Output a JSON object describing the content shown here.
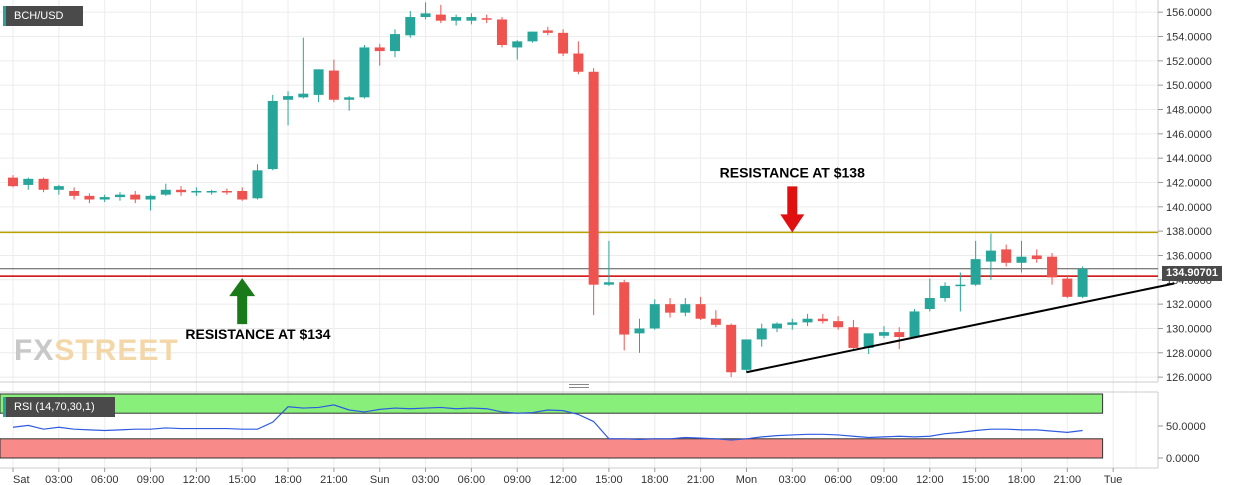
{
  "symbol": "BCH/USD",
  "current_price_label": "134.90701",
  "watermark": {
    "fx": "FX",
    "street": "STREET"
  },
  "colors": {
    "up": "#26a69a",
    "down": "#ef5350",
    "resistance134": "#cc0000",
    "resistance138": "#b8a200",
    "trend": "#000000"
  },
  "chart_data": {
    "type": "candlestick",
    "ylim": [
      125.6,
      157.0
    ],
    "yticks": [
      "156.0000",
      "154.0000",
      "152.0000",
      "150.0000",
      "148.0000",
      "146.0000",
      "144.0000",
      "142.0000",
      "140.0000",
      "138.0000",
      "136.0000",
      "134.0000",
      "132.0000",
      "130.0000",
      "128.0000",
      "126.0000"
    ],
    "x_labels": [
      {
        "t": 0,
        "label": "Sat"
      },
      {
        "t": 3,
        "label": "03:00"
      },
      {
        "t": 6,
        "label": "06:00"
      },
      {
        "t": 9,
        "label": "09:00"
      },
      {
        "t": 12,
        "label": "12:00"
      },
      {
        "t": 15,
        "label": "15:00"
      },
      {
        "t": 18,
        "label": "18:00"
      },
      {
        "t": 21,
        "label": "21:00"
      },
      {
        "t": 24,
        "label": "Sun"
      },
      {
        "t": 27,
        "label": "03:00"
      },
      {
        "t": 30,
        "label": "06:00"
      },
      {
        "t": 33,
        "label": "09:00"
      },
      {
        "t": 36,
        "label": "12:00"
      },
      {
        "t": 39,
        "label": "15:00"
      },
      {
        "t": 42,
        "label": "18:00"
      },
      {
        "t": 45,
        "label": "21:00"
      },
      {
        "t": 48,
        "label": "Mon"
      },
      {
        "t": 51,
        "label": "03:00"
      },
      {
        "t": 54,
        "label": "06:00"
      },
      {
        "t": 57,
        "label": "09:00"
      },
      {
        "t": 60,
        "label": "12:00"
      },
      {
        "t": 63,
        "label": "15:00"
      },
      {
        "t": 66,
        "label": "18:00"
      },
      {
        "t": 69,
        "label": "21:00"
      },
      {
        "t": 72,
        "label": "Tue"
      }
    ],
    "candles": [
      {
        "t": 0,
        "o": 142.4,
        "h": 142.6,
        "l": 141.6,
        "c": 141.7
      },
      {
        "t": 1,
        "o": 141.8,
        "h": 142.4,
        "l": 141.4,
        "c": 142.3
      },
      {
        "t": 2,
        "o": 142.3,
        "h": 142.4,
        "l": 141.2,
        "c": 141.4
      },
      {
        "t": 3,
        "o": 141.4,
        "h": 141.8,
        "l": 141.0,
        "c": 141.7
      },
      {
        "t": 4,
        "o": 141.3,
        "h": 141.6,
        "l": 140.6,
        "c": 140.9
      },
      {
        "t": 5,
        "o": 140.9,
        "h": 141.1,
        "l": 140.3,
        "c": 140.6
      },
      {
        "t": 6,
        "o": 140.6,
        "h": 141.0,
        "l": 140.4,
        "c": 140.8
      },
      {
        "t": 7,
        "o": 140.8,
        "h": 141.2,
        "l": 140.5,
        "c": 141.0
      },
      {
        "t": 8,
        "o": 141.0,
        "h": 141.3,
        "l": 140.3,
        "c": 140.6
      },
      {
        "t": 9,
        "o": 140.6,
        "h": 141.0,
        "l": 139.7,
        "c": 140.9
      },
      {
        "t": 10,
        "o": 141.0,
        "h": 141.9,
        "l": 140.9,
        "c": 141.4
      },
      {
        "t": 11,
        "o": 141.4,
        "h": 141.7,
        "l": 140.9,
        "c": 141.2
      },
      {
        "t": 12,
        "o": 141.2,
        "h": 141.6,
        "l": 140.9,
        "c": 141.3
      },
      {
        "t": 13,
        "o": 141.2,
        "h": 141.4,
        "l": 141.0,
        "c": 141.3
      },
      {
        "t": 14,
        "o": 141.3,
        "h": 141.5,
        "l": 141.0,
        "c": 141.2
      },
      {
        "t": 15,
        "o": 141.3,
        "h": 141.6,
        "l": 140.5,
        "c": 140.6
      },
      {
        "t": 16,
        "o": 140.7,
        "h": 143.5,
        "l": 140.6,
        "c": 143.0
      },
      {
        "t": 17,
        "o": 143.1,
        "h": 149.2,
        "l": 143.0,
        "c": 148.7
      },
      {
        "t": 18,
        "o": 148.8,
        "h": 149.5,
        "l": 146.7,
        "c": 149.1
      },
      {
        "t": 19,
        "o": 149.0,
        "h": 153.9,
        "l": 148.9,
        "c": 149.3
      },
      {
        "t": 20,
        "o": 149.2,
        "h": 151.3,
        "l": 148.6,
        "c": 151.3
      },
      {
        "t": 21,
        "o": 151.2,
        "h": 152.1,
        "l": 148.6,
        "c": 148.8
      },
      {
        "t": 22,
        "o": 148.8,
        "h": 149.1,
        "l": 147.9,
        "c": 149.0
      },
      {
        "t": 23,
        "o": 149.0,
        "h": 153.3,
        "l": 148.9,
        "c": 153.1
      },
      {
        "t": 24,
        "o": 153.1,
        "h": 153.4,
        "l": 151.6,
        "c": 152.8
      },
      {
        "t": 25,
        "o": 152.8,
        "h": 154.6,
        "l": 152.3,
        "c": 154.2
      },
      {
        "t": 26,
        "o": 154.1,
        "h": 156.1,
        "l": 153.9,
        "c": 155.6
      },
      {
        "t": 27,
        "o": 155.6,
        "h": 156.8,
        "l": 155.4,
        "c": 155.9
      },
      {
        "t": 28,
        "o": 155.8,
        "h": 156.6,
        "l": 155.1,
        "c": 155.3
      },
      {
        "t": 29,
        "o": 155.3,
        "h": 155.8,
        "l": 154.9,
        "c": 155.6
      },
      {
        "t": 30,
        "o": 155.3,
        "h": 155.9,
        "l": 155.0,
        "c": 155.6
      },
      {
        "t": 31,
        "o": 155.5,
        "h": 155.8,
        "l": 155.1,
        "c": 155.4
      },
      {
        "t": 32,
        "o": 155.4,
        "h": 155.6,
        "l": 153.1,
        "c": 153.3
      },
      {
        "t": 33,
        "o": 153.1,
        "h": 153.7,
        "l": 152.1,
        "c": 153.6
      },
      {
        "t": 34,
        "o": 153.6,
        "h": 154.4,
        "l": 153.5,
        "c": 154.4
      },
      {
        "t": 35,
        "o": 154.5,
        "h": 154.8,
        "l": 154.1,
        "c": 154.3
      },
      {
        "t": 36,
        "o": 154.3,
        "h": 154.6,
        "l": 152.4,
        "c": 152.6
      },
      {
        "t": 37,
        "o": 152.6,
        "h": 153.6,
        "l": 150.9,
        "c": 151.1
      },
      {
        "t": 38,
        "o": 151.1,
        "h": 151.4,
        "l": 131.1,
        "c": 133.6
      },
      {
        "t": 39,
        "o": 133.6,
        "h": 137.2,
        "l": 133.5,
        "c": 133.8
      },
      {
        "t": 40,
        "o": 133.8,
        "h": 134.0,
        "l": 128.2,
        "c": 129.5
      },
      {
        "t": 41,
        "o": 129.6,
        "h": 130.8,
        "l": 128.0,
        "c": 130.0
      },
      {
        "t": 42,
        "o": 130.0,
        "h": 132.4,
        "l": 129.9,
        "c": 132.0
      },
      {
        "t": 43,
        "o": 132.0,
        "h": 132.5,
        "l": 130.9,
        "c": 131.3
      },
      {
        "t": 44,
        "o": 131.3,
        "h": 132.5,
        "l": 131.0,
        "c": 132.0
      },
      {
        "t": 45,
        "o": 132.0,
        "h": 132.6,
        "l": 130.7,
        "c": 130.8
      },
      {
        "t": 46,
        "o": 130.8,
        "h": 131.5,
        "l": 130.1,
        "c": 130.3
      },
      {
        "t": 47,
        "o": 130.3,
        "h": 130.4,
        "l": 126.0,
        "c": 126.4
      },
      {
        "t": 48,
        "o": 126.6,
        "h": 129.0,
        "l": 126.4,
        "c": 129.1
      },
      {
        "t": 49,
        "o": 129.1,
        "h": 130.4,
        "l": 128.5,
        "c": 130.0
      },
      {
        "t": 50,
        "o": 130.0,
        "h": 130.5,
        "l": 129.7,
        "c": 130.4
      },
      {
        "t": 51,
        "o": 130.3,
        "h": 130.8,
        "l": 129.9,
        "c": 130.5
      },
      {
        "t": 52,
        "o": 130.5,
        "h": 131.2,
        "l": 130.2,
        "c": 130.8
      },
      {
        "t": 53,
        "o": 130.8,
        "h": 131.2,
        "l": 130.4,
        "c": 130.6
      },
      {
        "t": 54,
        "o": 130.6,
        "h": 131.0,
        "l": 129.9,
        "c": 130.1
      },
      {
        "t": 55,
        "o": 130.1,
        "h": 130.7,
        "l": 128.2,
        "c": 128.4
      },
      {
        "t": 56,
        "o": 128.4,
        "h": 129.6,
        "l": 127.9,
        "c": 129.6
      },
      {
        "t": 57,
        "o": 129.4,
        "h": 130.2,
        "l": 129.2,
        "c": 129.7
      },
      {
        "t": 58,
        "o": 129.7,
        "h": 130.1,
        "l": 128.3,
        "c": 129.3
      },
      {
        "t": 59,
        "o": 129.3,
        "h": 131.6,
        "l": 129.2,
        "c": 131.4
      },
      {
        "t": 60,
        "o": 131.6,
        "h": 134.1,
        "l": 131.4,
        "c": 132.5
      },
      {
        "t": 61,
        "o": 132.5,
        "h": 133.8,
        "l": 132.2,
        "c": 133.5
      },
      {
        "t": 62,
        "o": 133.5,
        "h": 134.6,
        "l": 131.4,
        "c": 133.6
      },
      {
        "t": 63,
        "o": 133.6,
        "h": 137.2,
        "l": 133.5,
        "c": 135.7
      },
      {
        "t": 64,
        "o": 135.5,
        "h": 137.8,
        "l": 134.0,
        "c": 136.4
      },
      {
        "t": 65,
        "o": 136.5,
        "h": 136.9,
        "l": 135.1,
        "c": 135.4
      },
      {
        "t": 66,
        "o": 135.4,
        "h": 137.2,
        "l": 134.6,
        "c": 135.9
      },
      {
        "t": 67,
        "o": 136.0,
        "h": 136.5,
        "l": 135.4,
        "c": 135.7
      },
      {
        "t": 68,
        "o": 135.9,
        "h": 136.2,
        "l": 133.6,
        "c": 134.2
      },
      {
        "t": 69,
        "o": 134.1,
        "h": 134.4,
        "l": 132.5,
        "c": 132.6
      },
      {
        "t": 70,
        "o": 132.6,
        "h": 135.1,
        "l": 132.5,
        "c": 134.9
      }
    ],
    "resistance_lines": [
      {
        "price": 134.3,
        "color": "#cc0000"
      },
      {
        "price": 137.9,
        "color": "#b8a200"
      }
    ],
    "current_price": 134.90701,
    "trendline": {
      "t1": 48,
      "p1": 126.4,
      "t2": 76,
      "p2": 133.7
    },
    "annotations": [
      {
        "text": "RESISTANCE AT $138",
        "arrow": "down",
        "color": "#e01010",
        "t": 51,
        "price": 137.9
      },
      {
        "text": "RESISTANCE AT $134",
        "arrow": "up",
        "color": "#1a7a1a",
        "t": 15,
        "price": 134.3
      }
    ],
    "rsi": {
      "label": "RSI (14,70,30,1)",
      "yticks": [
        "50.0000",
        "0.0000"
      ],
      "zones": {
        "overbought": 70,
        "oversold": 30
      },
      "values": [
        48,
        51,
        45,
        48,
        45,
        44,
        43,
        44,
        45,
        45,
        47,
        46,
        46,
        46,
        46,
        45,
        45,
        56,
        80,
        78,
        79,
        83,
        75,
        72,
        76,
        78,
        77,
        78,
        79,
        77,
        78,
        77,
        72,
        70,
        71,
        75,
        74,
        68,
        57,
        30,
        30,
        29,
        30,
        30,
        32,
        31,
        30,
        28,
        30,
        33,
        35,
        36,
        37,
        37,
        36,
        34,
        32,
        33,
        34,
        33,
        34,
        38,
        40,
        43,
        45,
        45,
        44,
        44,
        42,
        40,
        43
      ]
    }
  }
}
